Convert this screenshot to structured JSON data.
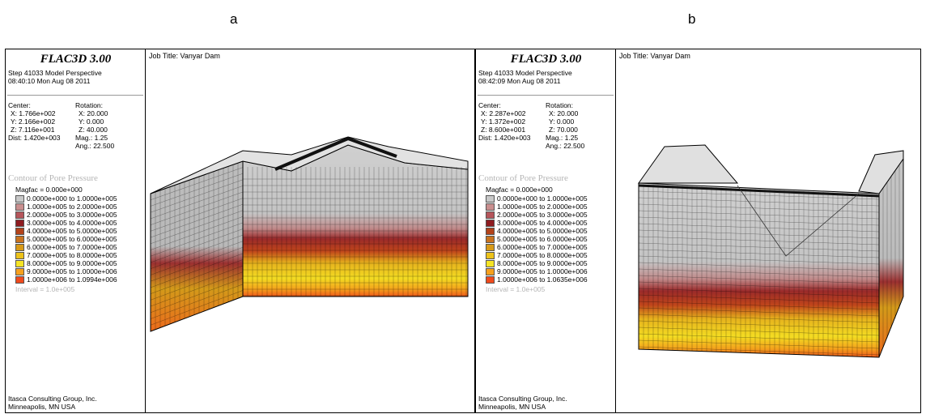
{
  "panels": [
    {
      "letter": "a",
      "app_title": "FLAC3D 3.00",
      "step_line": "Step 41033  Model Perspective",
      "time_line": "08:40:10 Mon Aug 08 2011",
      "center_label": "Center:",
      "rotation_label": "Rotation:",
      "center": [
        "X: 1.766e+002",
        "Y: 2.166e+002",
        "Z: 7.116e+001",
        "Dist: 1.420e+003"
      ],
      "rotation": [
        "X:  20.000",
        "Y:   0.000",
        "Z:  40.000",
        "Mag.:     1.25",
        "Ang.:  22.500"
      ],
      "contour_title": "Contour of Pore Pressure",
      "magfac": "Magfac =  0.000e+000",
      "ranges": [
        "0.0000e+000 to  1.0000e+005",
        "1.0000e+005 to  2.0000e+005",
        "2.0000e+005 to  3.0000e+005",
        "3.0000e+005 to  4.0000e+005",
        "4.0000e+005 to  5.0000e+005",
        "5.0000e+005 to  6.0000e+005",
        "6.0000e+005 to  7.0000e+005",
        "7.0000e+005 to  8.0000e+005",
        "8.0000e+005 to  9.0000e+005",
        "9.0000e+005 to  1.0000e+006",
        "1.0000e+006 to  1.0994e+006"
      ],
      "interval": "Interval =  1.0e+005",
      "company": "Itasca Consulting Group, Inc.",
      "location": "Minneapolis, MN  USA",
      "job_title": "Job Title: Vanyar Dam"
    },
    {
      "letter": "b",
      "app_title": "FLAC3D 3.00",
      "step_line": "Step 41033  Model Perspective",
      "time_line": "08:42:09 Mon Aug 08 2011",
      "center_label": "Center:",
      "rotation_label": "Rotation:",
      "center": [
        "X: 2.287e+002",
        "Y: 1.372e+002",
        "Z: 8.600e+001",
        "Dist: 1.420e+003"
      ],
      "rotation": [
        "X:  20.000",
        "Y:   0.000",
        "Z:  70.000",
        "Mag.:     1.25",
        "Ang.:  22.500"
      ],
      "contour_title": "Contour of Pore Pressure",
      "magfac": "Magfac =  0.000e+000",
      "ranges": [
        "0.0000e+000 to  1.0000e+005",
        "1.0000e+005 to  2.0000e+005",
        "2.0000e+005 to  3.0000e+005",
        "3.0000e+005 to  4.0000e+005",
        "4.0000e+005 to  5.0000e+005",
        "5.0000e+005 to  6.0000e+005",
        "6.0000e+005 to  7.0000e+005",
        "7.0000e+005 to  8.0000e+005",
        "8.0000e+005 to  9.0000e+005",
        "9.0000e+005 to  1.0000e+006",
        "1.0000e+006 to  1.0635e+006"
      ],
      "interval": "Interval =  1.0e+005",
      "company": "Itasca Consulting Group, Inc.",
      "location": "Minneapolis, MN  USA",
      "job_title": "Job Title: Vanyar Dam"
    }
  ],
  "contour_colors": [
    "#c8c8c8",
    "#c98f8f",
    "#b5555b",
    "#8e1c20",
    "#b3431a",
    "#c8731f",
    "#d89a18",
    "#ecc21a",
    "#f5e425",
    "#f7a11d",
    "#f04a1c"
  ]
}
